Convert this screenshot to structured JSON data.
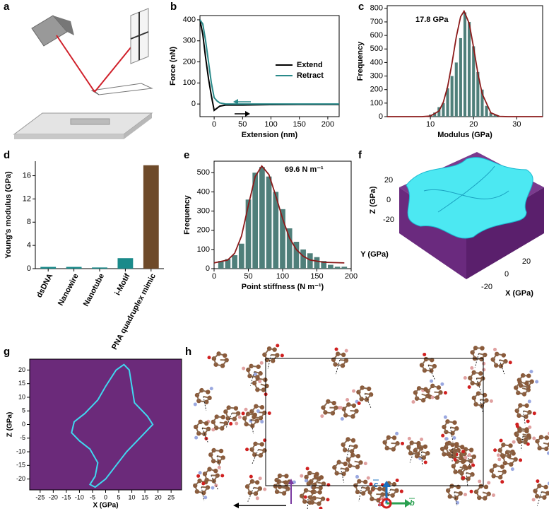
{
  "panel_labels": [
    "a",
    "b",
    "c",
    "d",
    "e",
    "f",
    "g",
    "h"
  ],
  "chart_data": [
    {
      "type": "line",
      "x_label": "Extension (nm)",
      "y_label": "Force (nN)",
      "x": [
        -25,
        -20,
        -15,
        -10,
        -5,
        0,
        5,
        10,
        20,
        50,
        100,
        150,
        200,
        220
      ],
      "series": [
        {
          "name": "Extend",
          "color": "#000000",
          "values": [
            400,
            330,
            220,
            120,
            40,
            -30,
            -20,
            -10,
            -5,
            -5,
            -3,
            -2,
            -2,
            -2
          ]
        },
        {
          "name": "Retract",
          "color": "#2a8a8a",
          "values": [
            400,
            380,
            300,
            200,
            100,
            30,
            15,
            5,
            0,
            0,
            0,
            0,
            0,
            0
          ]
        }
      ],
      "xlim": [
        -25,
        220
      ],
      "xticks": [
        0,
        50,
        100,
        150,
        200
      ],
      "ylim": [
        -60,
        420
      ],
      "yticks": [
        0,
        100,
        200,
        300,
        400
      ],
      "legend": "upper right"
    },
    {
      "type": "histogram",
      "annotation": "17.8 GPa",
      "x_label": "Modulus (GPa)",
      "y_label": "Frequency",
      "bins": [
        8.5,
        9.5,
        10.5,
        11.5,
        12.5,
        13.5,
        14.5,
        15.5,
        16.5,
        17.5,
        18.5,
        19.5,
        20.5,
        21.5,
        22.5,
        23.5,
        24.5,
        25.5
      ],
      "values": [
        5,
        15,
        30,
        70,
        100,
        210,
        300,
        400,
        580,
        770,
        700,
        520,
        330,
        200,
        80,
        30,
        15
      ],
      "color": "#4f7f7a",
      "fit": {
        "color": "#8b1a1a",
        "x": [
          0,
          8,
          10,
          12,
          13,
          14,
          15,
          16,
          17,
          17.8,
          19,
          20,
          21,
          22,
          24,
          26,
          28,
          36
        ],
        "values": [
          0,
          0,
          4,
          42,
          106,
          223,
          395,
          589,
          738,
          780,
          688,
          513,
          321,
          169,
          28,
          2,
          0,
          0
        ]
      },
      "xlim": [
        0,
        36
      ],
      "xticks": [
        10,
        20,
        30
      ],
      "ylim": [
        0,
        820
      ],
      "yticks": [
        0,
        100,
        200,
        300,
        400,
        500,
        600,
        700,
        800
      ]
    },
    {
      "type": "bar",
      "y_label": "Young's modulus (GPa)",
      "categories": [
        "dsDNA",
        "Nanowire",
        "Nanotube",
        "i-Motif",
        "PNA quadruplex mimic"
      ],
      "values": [
        0.3,
        0.3,
        0.2,
        1.8,
        17.8
      ],
      "colors": [
        "#1a8a8a",
        "#1a8a8a",
        "#1a8a8a",
        "#1a8a8a",
        "#6e4a2a"
      ],
      "ylim": [
        0,
        18.5
      ],
      "yticks": [
        0,
        4,
        8,
        12,
        16
      ]
    },
    {
      "type": "histogram",
      "annotation": "69.6 N m⁻¹",
      "x_label": "Point stiffness (N m⁻¹)",
      "y_label": "Frequency",
      "bins": [
        5,
        15,
        25,
        35,
        45,
        55,
        65,
        75,
        85,
        95,
        105,
        115,
        125,
        135,
        145,
        155,
        165,
        175,
        185,
        195
      ],
      "values": [
        40,
        50,
        70,
        130,
        360,
        500,
        530,
        480,
        400,
        310,
        210,
        140,
        100,
        80,
        60,
        40,
        20,
        10,
        10
      ],
      "color": "#4f7f7a",
      "fit": {
        "color": "#8b1a1a",
        "x": [
          0,
          20,
          30,
          40,
          50,
          60,
          69.6,
          80,
          90,
          100,
          110,
          120,
          130,
          140,
          160,
          190
        ],
        "values": [
          30,
          45,
          80,
          170,
          330,
          480,
          535,
          490,
          380,
          260,
          160,
          100,
          65,
          45,
          33,
          30
        ]
      },
      "xlim": [
        0,
        200
      ],
      "xticks": [
        0,
        50,
        100,
        150,
        200
      ],
      "ylim": [
        0,
        560
      ],
      "yticks": [
        0,
        100,
        200,
        300,
        400,
        500
      ]
    },
    {
      "type": "curve",
      "x_label": "X (GPa)",
      "y_label": "Z (GPa)",
      "background": "#6b2a7a",
      "color": "#40d8f0",
      "x": [
        7,
        4,
        0,
        -3,
        -8,
        -12,
        -13,
        -10,
        -6,
        -3,
        -4,
        -6,
        -4,
        0,
        4,
        8,
        14,
        18,
        16,
        11,
        10,
        9,
        7
      ],
      "values": [
        22,
        20,
        14,
        9,
        4,
        1,
        -3,
        -6,
        -9,
        -14,
        -19,
        -22,
        -23,
        -20,
        -15,
        -10,
        -4,
        0,
        3,
        8,
        14,
        20,
        22
      ],
      "xlim": [
        -29,
        29
      ],
      "xticks": [
        -25,
        -20,
        -15,
        -10,
        -5,
        0,
        5,
        10,
        15,
        20,
        25
      ],
      "ylim": [
        -24,
        24
      ],
      "yticks": [
        -20,
        -15,
        -10,
        -5,
        0,
        5,
        10,
        15,
        20
      ]
    }
  ],
  "panel_f": {
    "z_label": "Z (GPa)",
    "y_label": "Y (GPa)",
    "x_label": "X (GPa)",
    "z_ticks": [
      20,
      0,
      -20
    ],
    "x_ticks": [
      20,
      0,
      -20
    ]
  },
  "panel_h": {
    "axis_labels": [
      "c",
      "a",
      "b"
    ]
  }
}
